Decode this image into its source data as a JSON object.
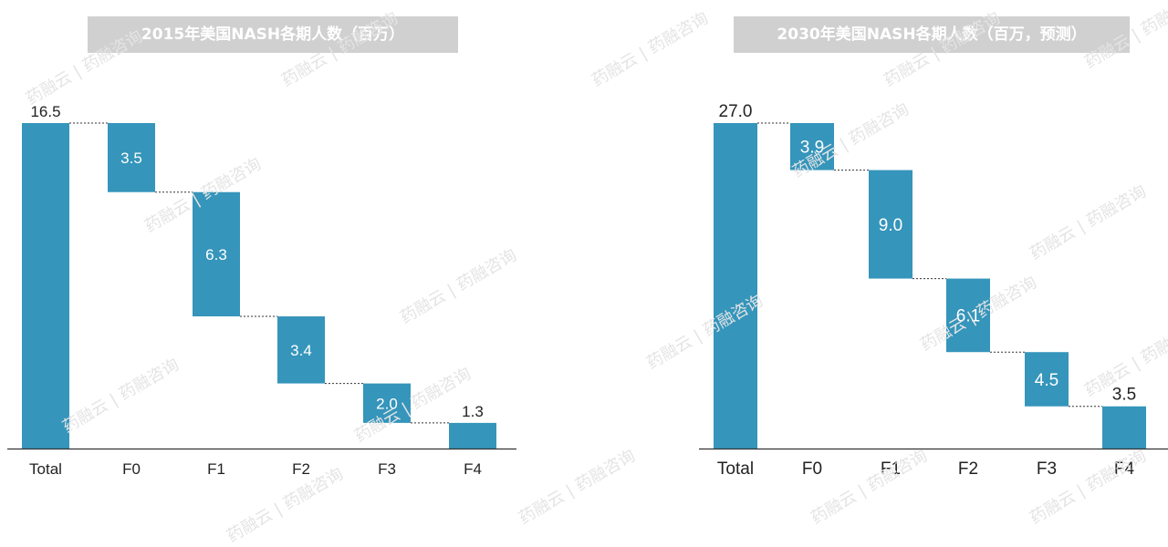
{
  "watermark": "药融云 | 药融咨询",
  "colors": {
    "bar": "#3595bb",
    "title_bg": "#d0d0d0",
    "axis": "#333333",
    "connector": "#333333"
  },
  "chart_data": [
    {
      "type": "bar",
      "subtype": "waterfall",
      "title": "2015年美国NASH各期人数（百万）",
      "categories": [
        "Total",
        "F0",
        "F1",
        "F2",
        "F3",
        "F4"
      ],
      "values": [
        16.5,
        3.5,
        6.3,
        3.4,
        2.0,
        1.3
      ],
      "labels": [
        "16.5",
        "3.5",
        "6.3",
        "3.4",
        "2.0",
        "1.3"
      ],
      "label_position": [
        "above",
        "inside",
        "inside",
        "inside",
        "inside",
        "above"
      ],
      "xlabel": "",
      "ylabel": "",
      "ylim": [
        0,
        16.5
      ],
      "grid": false,
      "legend": "none"
    },
    {
      "type": "bar",
      "subtype": "waterfall",
      "title": "2030年美国NASH各期人数（百万，预测）",
      "categories": [
        "Total",
        "F0",
        "F1",
        "F2",
        "F3",
        "F4"
      ],
      "values": [
        27.0,
        3.9,
        9.0,
        6.1,
        4.5,
        3.5
      ],
      "labels": [
        "27.0",
        "3.9",
        "9.0",
        "6.1",
        "4.5",
        "3.5"
      ],
      "label_position": [
        "above",
        "inside",
        "inside",
        "inside",
        "inside",
        "above"
      ],
      "xlabel": "",
      "ylabel": "",
      "ylim": [
        0,
        27.0
      ],
      "grid": false,
      "legend": "none"
    }
  ]
}
